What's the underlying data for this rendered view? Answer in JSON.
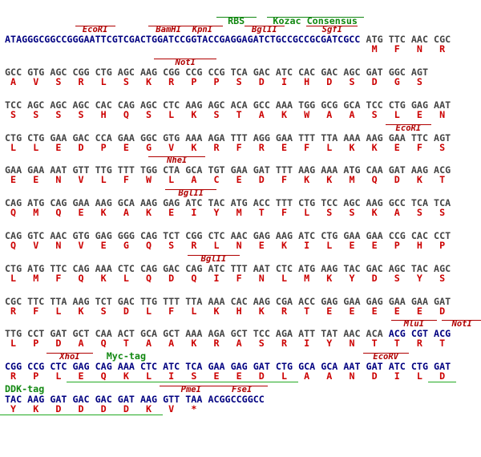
{
  "rows": [
    {
      "features": [
        "RBS",
        "Kozac Consensus",
        "EcoRI",
        "BamHI",
        "KpnI",
        "BglII",
        "SgfI"
      ],
      "prefix": "ATAGGGCGGCCGGGAATTCGTCGACTGGATCCGGTACCGAGGAGATCTGCCGCCGCGATCGCC",
      "codons": [
        "ATG",
        "TTC",
        "AAC",
        "CGC"
      ],
      "aa": [
        "M",
        "F",
        "N",
        "R"
      ]
    },
    {
      "features": [
        "NotI"
      ],
      "codons": [
        "GCC",
        "GTG",
        "AGC",
        "CGG",
        "CTG",
        "AGC",
        "AAG",
        "CGG",
        "CCG",
        "CCG",
        "TCA",
        "GAC",
        "ATC",
        "CAC",
        "GAC",
        "AGC",
        "GAT",
        "GGC",
        "AGT"
      ],
      "aa": [
        "A",
        "V",
        "S",
        "R",
        "L",
        "S",
        "K",
        "R",
        "P",
        "P",
        "S",
        "D",
        "I",
        "H",
        "D",
        "S",
        "D",
        "G",
        "S"
      ]
    },
    {
      "features": [],
      "codons": [
        "TCC",
        "AGC",
        "AGC",
        "AGC",
        "CAC",
        "CAG",
        "AGC",
        "CTC",
        "AAG",
        "AGC",
        "ACA",
        "GCC",
        "AAA",
        "TGG",
        "GCG",
        "GCA",
        "TCC",
        "CTG",
        "GAG",
        "AAT"
      ],
      "aa": [
        "S",
        "S",
        "S",
        "S",
        "H",
        "Q",
        "S",
        "L",
        "K",
        "S",
        "T",
        "A",
        "K",
        "W",
        "A",
        "A",
        "S",
        "L",
        "E",
        "N"
      ]
    },
    {
      "features": [
        "EcoRI"
      ],
      "codons": [
        "CTG",
        "CTG",
        "GAA",
        "GAC",
        "CCA",
        "GAA",
        "GGC",
        "GTG",
        "AAA",
        "AGA",
        "TTT",
        "AGG",
        "GAA",
        "TTT",
        "TTA",
        "AAA",
        "AAG",
        "GAA",
        "TTC",
        "AGT"
      ],
      "aa": [
        "L",
        "L",
        "E",
        "D",
        "P",
        "E",
        "G",
        "V",
        "K",
        "R",
        "F",
        "R",
        "E",
        "F",
        "L",
        "K",
        "K",
        "E",
        "F",
        "S"
      ]
    },
    {
      "features": [
        "NheI"
      ],
      "codons": [
        "GAA",
        "GAA",
        "AAT",
        "GTT",
        "TTG",
        "TTT",
        "TGG",
        "CTA",
        "GCA",
        "TGT",
        "GAA",
        "GAT",
        "TTT",
        "AAG",
        "AAA",
        "ATG",
        "CAA",
        "GAT",
        "AAG",
        "ACG"
      ],
      "aa": [
        "E",
        "E",
        "N",
        "V",
        "L",
        "F",
        "W",
        "L",
        "A",
        "C",
        "E",
        "D",
        "F",
        "K",
        "K",
        "M",
        "Q",
        "D",
        "K",
        "T"
      ]
    },
    {
      "features": [
        "BglII"
      ],
      "codons": [
        "CAG",
        "ATG",
        "CAG",
        "GAA",
        "AAG",
        "GCA",
        "AAG",
        "GAG",
        "ATC",
        "TAC",
        "ATG",
        "ACC",
        "TTT",
        "CTG",
        "TCC",
        "AGC",
        "AAG",
        "GCC",
        "TCA",
        "TCA"
      ],
      "aa": [
        "Q",
        "M",
        "Q",
        "E",
        "K",
        "A",
        "K",
        "E",
        "I",
        "Y",
        "M",
        "T",
        "F",
        "L",
        "S",
        "S",
        "K",
        "A",
        "S",
        "S"
      ]
    },
    {
      "features": [],
      "codons": [
        "CAG",
        "GTC",
        "AAC",
        "GTG",
        "GAG",
        "GGG",
        "CAG",
        "TCT",
        "CGG",
        "CTC",
        "AAC",
        "GAG",
        "AAG",
        "ATC",
        "CTG",
        "GAA",
        "GAA",
        "CCG",
        "CAC",
        "CCT"
      ],
      "aa": [
        "Q",
        "V",
        "N",
        "V",
        "E",
        "G",
        "Q",
        "S",
        "R",
        "L",
        "N",
        "E",
        "K",
        "I",
        "L",
        "E",
        "E",
        "P",
        "H",
        "P"
      ]
    },
    {
      "features": [
        "BglII"
      ],
      "codons": [
        "CTG",
        "ATG",
        "TTC",
        "CAG",
        "AAA",
        "CTC",
        "CAG",
        "GAC",
        "CAG",
        "ATC",
        "TTT",
        "AAT",
        "CTC",
        "ATG",
        "AAG",
        "TAC",
        "GAC",
        "AGC",
        "TAC",
        "AGC"
      ],
      "aa": [
        "L",
        "M",
        "F",
        "Q",
        "K",
        "L",
        "Q",
        "D",
        "Q",
        "I",
        "F",
        "N",
        "L",
        "M",
        "K",
        "Y",
        "D",
        "S",
        "Y",
        "S"
      ]
    },
    {
      "features": [],
      "codons": [
        "CGC",
        "TTC",
        "TTA",
        "AAG",
        "TCT",
        "GAC",
        "TTG",
        "TTT",
        "TTA",
        "AAA",
        "CAC",
        "AAG",
        "CGA",
        "ACC",
        "GAG",
        "GAA",
        "GAG",
        "GAA",
        "GAA",
        "GAT"
      ],
      "aa": [
        "R",
        "F",
        "L",
        "K",
        "S",
        "D",
        "L",
        "F",
        "L",
        "K",
        "H",
        "K",
        "R",
        "T",
        "E",
        "E",
        "E",
        "E",
        "E",
        "D"
      ]
    },
    {
      "features": [
        "MluI",
        "NotI"
      ],
      "codons": [
        "TTG",
        "CCT",
        "GAT",
        "GCT",
        "CAA",
        "ACT",
        "GCA",
        "GCT",
        "AAA",
        "AGA",
        "GCT",
        "TCC",
        "AGA",
        "ATT",
        "TAT",
        "AAC",
        "ACA",
        "ACG",
        "CGT",
        "ACG"
      ],
      "aa": [
        "L",
        "P",
        "D",
        "A",
        "Q",
        "T",
        "A",
        "A",
        "K",
        "R",
        "A",
        "S",
        "R",
        "I",
        "Y",
        "N",
        "T",
        "T",
        "R",
        "T"
      ]
    },
    {
      "features": [
        "XhoI",
        "Myc-tag",
        "EcoRV"
      ],
      "codons": [
        "CGG",
        "CCG",
        "CTC",
        "GAG",
        "CAG",
        "AAA",
        "CTC",
        "ATC",
        "TCA",
        "GAA",
        "GAG",
        "GAT",
        "CTG",
        "GCA",
        "GCA",
        "AAT",
        "GAT",
        "ATC",
        "CTG",
        "GAT"
      ],
      "aa": [
        "R",
        "P",
        "L",
        "E",
        "Q",
        "K",
        "L",
        "I",
        "S",
        "E",
        "E",
        "D",
        "L",
        "A",
        "A",
        "N",
        "D",
        "I",
        "L",
        "D"
      ]
    },
    {
      "features": [
        "DDK-tag",
        "PmeI",
        "FseI"
      ],
      "codons": [
        "TAC",
        "AAG",
        "GAT",
        "GAC",
        "GAC",
        "GAT",
        "AAG",
        "GTT",
        "TAA"
      ],
      "suffix": "ACGGCCGGCC",
      "aa": [
        "Y",
        "K",
        "D",
        "D",
        "D",
        "D",
        "K",
        "V",
        "*"
      ]
    }
  ]
}
